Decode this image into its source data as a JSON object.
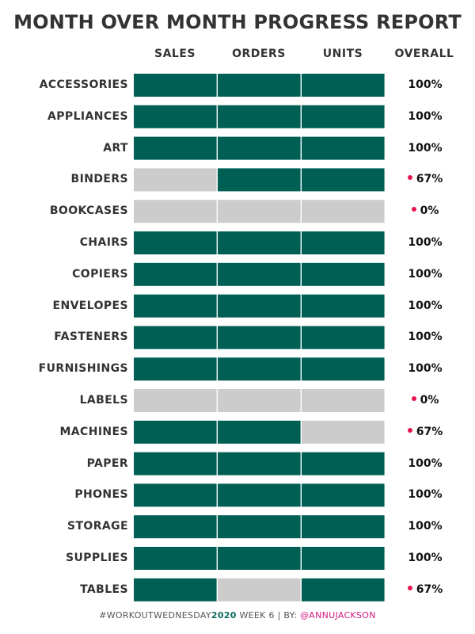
{
  "colors": {
    "complete": "#005f55",
    "incomplete": "#cccccc",
    "alert_dot": "#e4124f"
  },
  "chart_data": {
    "type": "table",
    "title": "MONTH OVER MONTH PROGRESS REPORT",
    "columns": [
      "SALES",
      "ORDERS",
      "UNITS"
    ],
    "overall_header": "OVERALL",
    "rows": [
      {
        "category": "ACCESSORIES",
        "sales": 1,
        "orders": 1,
        "units": 1,
        "overall": "100%",
        "flag": false
      },
      {
        "category": "APPLIANCES",
        "sales": 1,
        "orders": 1,
        "units": 1,
        "overall": "100%",
        "flag": false
      },
      {
        "category": "ART",
        "sales": 1,
        "orders": 1,
        "units": 1,
        "overall": "100%",
        "flag": false
      },
      {
        "category": "BINDERS",
        "sales": 0,
        "orders": 1,
        "units": 1,
        "overall": "67%",
        "flag": true
      },
      {
        "category": "BOOKCASES",
        "sales": 0,
        "orders": 0,
        "units": 0,
        "overall": "0%",
        "flag": true
      },
      {
        "category": "CHAIRS",
        "sales": 1,
        "orders": 1,
        "units": 1,
        "overall": "100%",
        "flag": false
      },
      {
        "category": "COPIERS",
        "sales": 1,
        "orders": 1,
        "units": 1,
        "overall": "100%",
        "flag": false
      },
      {
        "category": "ENVELOPES",
        "sales": 1,
        "orders": 1,
        "units": 1,
        "overall": "100%",
        "flag": false
      },
      {
        "category": "FASTENERS",
        "sales": 1,
        "orders": 1,
        "units": 1,
        "overall": "100%",
        "flag": false
      },
      {
        "category": "FURNISHINGS",
        "sales": 1,
        "orders": 1,
        "units": 1,
        "overall": "100%",
        "flag": false
      },
      {
        "category": "LABELS",
        "sales": 0,
        "orders": 0,
        "units": 0,
        "overall": "0%",
        "flag": true
      },
      {
        "category": "MACHINES",
        "sales": 1,
        "orders": 1,
        "units": 0,
        "overall": "67%",
        "flag": true
      },
      {
        "category": "PAPER",
        "sales": 1,
        "orders": 1,
        "units": 1,
        "overall": "100%",
        "flag": false
      },
      {
        "category": "PHONES",
        "sales": 1,
        "orders": 1,
        "units": 1,
        "overall": "100%",
        "flag": false
      },
      {
        "category": "STORAGE",
        "sales": 1,
        "orders": 1,
        "units": 1,
        "overall": "100%",
        "flag": false
      },
      {
        "category": "SUPPLIES",
        "sales": 1,
        "orders": 1,
        "units": 1,
        "overall": "100%",
        "flag": false
      },
      {
        "category": "TABLES",
        "sales": 1,
        "orders": 0,
        "units": 1,
        "overall": "67%",
        "flag": true
      }
    ]
  },
  "footer": {
    "hashtag": "#WORKOUTWEDNESDAY",
    "year": "2020",
    "rest": " WEEK 6 | BY: ",
    "handle": "@ANNUJACKSON"
  }
}
